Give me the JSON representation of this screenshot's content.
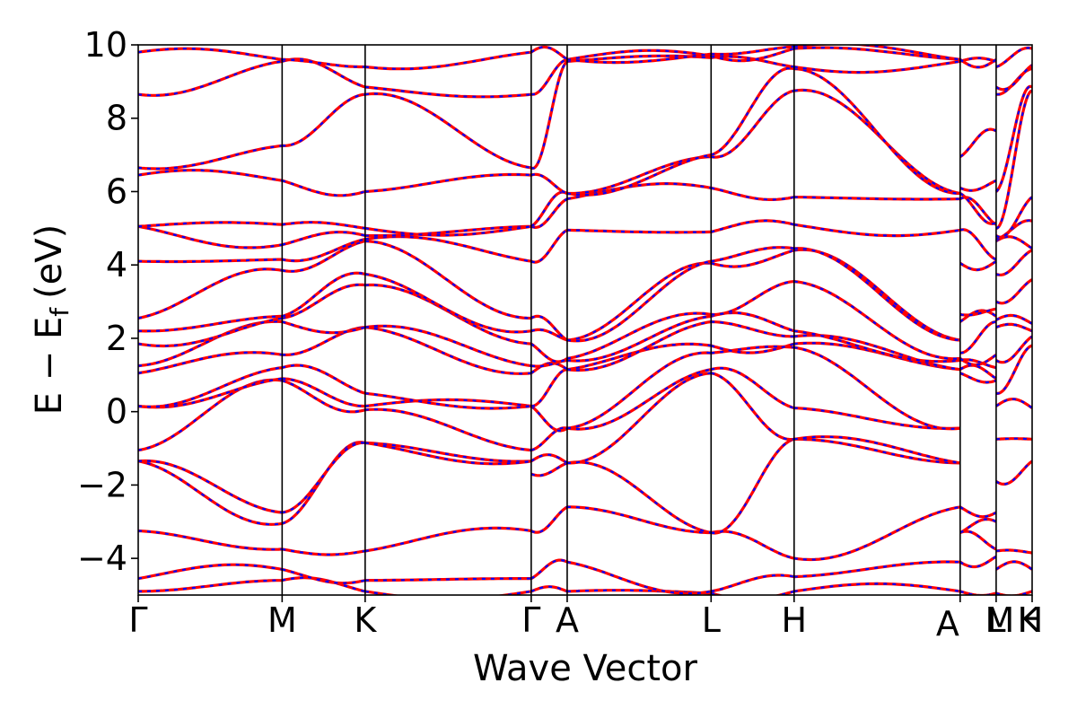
{
  "chart_data": {
    "type": "line",
    "title": "",
    "xlabel": "Wave Vector",
    "ylabel": "E − E",
    "ylabel_subscript": "f",
    "ylabel_unit": "(eV)",
    "ylim": [
      -5,
      10
    ],
    "y_ticks": [
      -4,
      -2,
      0,
      2,
      4,
      6,
      8,
      10
    ],
    "y_tick_labels": [
      "−4",
      "−2",
      "0",
      "2",
      "4",
      "6",
      "8",
      "10"
    ],
    "x_range": [
      0,
      6.46
    ],
    "grid": false,
    "legend": "none",
    "high_symmetry_points": [
      {
        "label": "Γ",
        "x": 0.0
      },
      {
        "label": "M",
        "x": 1.04
      },
      {
        "label": "K",
        "x": 1.64
      },
      {
        "label": "Γ",
        "x": 2.84
      },
      {
        "label": "A",
        "x": 3.1
      },
      {
        "label": "L",
        "x": 4.14
      },
      {
        "label": "H",
        "x": 4.74
      },
      {
        "label": "A",
        "x": 5.94
      },
      {
        "label": "L",
        "x": 6.2
      },
      {
        "label": "M",
        "x": 6.2
      },
      {
        "label": "K",
        "x": 6.46
      },
      {
        "label": "H",
        "x": 6.46
      }
    ],
    "colors": {
      "series_a": "#ff0000",
      "series_b": "#0000ff",
      "axes": "#000000"
    },
    "segments": [
      {
        "x0": 0.0,
        "x1": 1.04,
        "start": [
          -4.9,
          -4.55,
          -3.25,
          -1.35,
          -1.35,
          -1.05,
          0.15,
          0.15,
          1.05,
          1.25,
          1.85,
          2.2,
          2.55,
          4.1,
          5.05,
          5.05,
          6.45,
          6.65,
          8.65,
          9.8
        ],
        "end": [
          -4.6,
          -4.3,
          -3.75,
          -3.05,
          -2.75,
          0.85,
          0.9,
          1.2,
          1.55,
          2.45,
          2.55,
          2.6,
          3.85,
          4.15,
          4.55,
          5.1,
          6.3,
          7.25,
          9.55,
          9.6
        ]
      },
      {
        "x0": 1.04,
        "x1": 1.64,
        "start": [
          -4.6,
          -4.3,
          -3.75,
          -3.05,
          -2.75,
          0.85,
          0.9,
          1.2,
          1.55,
          2.45,
          2.55,
          2.6,
          3.85,
          4.15,
          4.55,
          5.1,
          6.3,
          7.25,
          9.55,
          9.6
        ],
        "end": [
          -4.9,
          -4.6,
          -3.8,
          -0.85,
          -0.85,
          0.05,
          0.15,
          0.5,
          2.3,
          2.3,
          3.45,
          3.75,
          4.65,
          4.7,
          4.8,
          5.0,
          6.0,
          8.65,
          8.85,
          9.4
        ]
      },
      {
        "x0": 1.64,
        "x1": 2.84,
        "start": [
          -4.9,
          -4.6,
          -3.8,
          -0.85,
          -0.85,
          0.05,
          0.15,
          0.5,
          2.3,
          2.3,
          3.45,
          3.75,
          4.65,
          4.7,
          4.8,
          5.0,
          6.0,
          8.65,
          8.85,
          9.4
        ],
        "end": [
          -4.9,
          -4.55,
          -3.25,
          -1.35,
          -1.35,
          -1.05,
          0.15,
          0.15,
          1.05,
          1.25,
          1.85,
          2.2,
          2.55,
          4.1,
          5.05,
          5.05,
          6.45,
          6.65,
          8.65,
          9.8
        ]
      },
      {
        "x0": 2.84,
        "x1": 3.1,
        "start": [
          -4.9,
          -4.55,
          -3.25,
          -1.7,
          -1.35,
          -1.05,
          0.15,
          0.15,
          1.05,
          1.25,
          1.85,
          2.2,
          2.55,
          4.1,
          5.05,
          5.05,
          6.45,
          6.65,
          8.65,
          9.8
        ],
        "end": [
          -4.9,
          -4.1,
          -2.6,
          -1.4,
          -1.4,
          -0.45,
          -0.45,
          1.15,
          1.15,
          1.4,
          1.45,
          1.95,
          1.95,
          4.95,
          5.8,
          5.95,
          5.95,
          9.55,
          9.6,
          9.6
        ]
      },
      {
        "x0": 3.1,
        "x1": 4.14,
        "start": [
          -4.9,
          -4.1,
          -2.6,
          -1.4,
          -1.4,
          -0.45,
          -0.45,
          1.15,
          1.15,
          1.4,
          1.45,
          1.95,
          1.95,
          4.95,
          5.8,
          5.95,
          5.95,
          9.55,
          9.6,
          9.6
        ],
        "end": [
          -4.95,
          -4.9,
          -3.3,
          -3.3,
          1.05,
          1.15,
          1.6,
          1.8,
          2.45,
          2.6,
          2.65,
          4.05,
          4.1,
          4.9,
          6.1,
          6.95,
          7.0,
          9.65,
          9.7,
          9.75
        ]
      },
      {
        "x0": 4.14,
        "x1": 4.74,
        "start": [
          -4.95,
          -4.9,
          -3.3,
          -3.3,
          1.05,
          1.15,
          1.6,
          1.8,
          2.45,
          2.6,
          2.65,
          4.05,
          4.1,
          4.9,
          6.1,
          6.95,
          7.0,
          9.65,
          9.7,
          9.75
        ],
        "end": [
          -4.9,
          -4.5,
          -4.0,
          -0.75,
          -0.75,
          0.1,
          1.75,
          1.85,
          2.05,
          2.2,
          3.55,
          4.4,
          4.45,
          5.1,
          5.85,
          8.75,
          9.35,
          9.4,
          9.9,
          9.95
        ]
      },
      {
        "x0": 4.74,
        "x1": 5.94,
        "start": [
          -4.9,
          -4.5,
          -4.0,
          -0.75,
          -0.75,
          0.1,
          1.75,
          1.85,
          2.05,
          2.2,
          3.55,
          4.4,
          4.45,
          5.1,
          5.85,
          8.75,
          9.35,
          9.4,
          9.9,
          9.95
        ],
        "end": [
          -4.9,
          -4.1,
          -2.6,
          -1.4,
          -1.4,
          -0.45,
          -0.45,
          1.15,
          1.15,
          1.4,
          1.45,
          1.95,
          1.95,
          4.95,
          5.8,
          5.95,
          5.95,
          9.55,
          9.6,
          9.6
        ]
      },
      {
        "x0": 5.94,
        "x1": 6.2,
        "start": [
          -4.9,
          -4.1,
          -3.3,
          -3.3,
          -2.6,
          1.05,
          1.15,
          1.4,
          1.45,
          1.6,
          2.45,
          2.65,
          4.05,
          4.95,
          5.8,
          5.95,
          6.1,
          6.95,
          9.55,
          9.6
        ],
        "end": [
          -4.95,
          -3.95,
          -3.75,
          -3.0,
          -2.75,
          0.85,
          0.9,
          1.2,
          1.55,
          2.45,
          2.6,
          2.8,
          4.1,
          4.15,
          5.1,
          5.15,
          6.3,
          7.65,
          9.55,
          9.6
        ]
      },
      {
        "x0": 6.2,
        "x1": 6.46,
        "start": [
          -4.95,
          -4.3,
          -3.8,
          -1.9,
          -0.75,
          0.15,
          0.5,
          1.4,
          2.3,
          2.5,
          3.0,
          3.75,
          4.65,
          4.7,
          4.8,
          5.0,
          6.0,
          8.65,
          8.85,
          9.4
        ],
        "end": [
          -4.9,
          -4.3,
          -3.85,
          -1.35,
          -0.75,
          0.1,
          1.8,
          2.05,
          2.2,
          2.4,
          3.6,
          4.4,
          4.45,
          5.2,
          5.85,
          8.75,
          8.85,
          9.35,
          9.45,
          9.9
        ]
      }
    ]
  }
}
